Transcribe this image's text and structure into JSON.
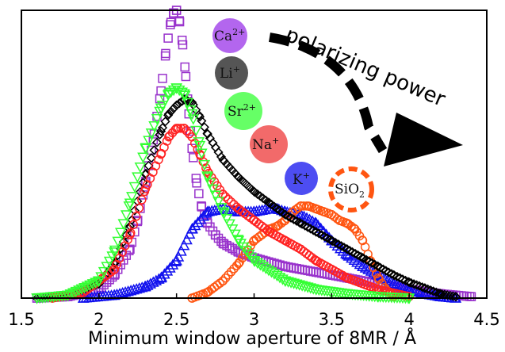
{
  "chart_data": {
    "type": "scatter",
    "title": "",
    "xlabel": "Minimum window aperture of 8MR / Å",
    "ylabel": "",
    "xlim": [
      1.5,
      4.5
    ],
    "ylim": [
      0,
      1.0
    ],
    "xticks": [
      "1.5",
      "2",
      "2.5",
      "3",
      "3.5",
      "4",
      "4.5"
    ],
    "yticks": [],
    "grid": false,
    "legend": "none",
    "series": [
      {
        "name": "Ca²⁺",
        "color": "#9933cc",
        "marker": "square",
        "x": [
          1.6,
          1.8,
          2.0,
          2.1,
          2.2,
          2.25,
          2.3,
          2.35,
          2.4,
          2.43,
          2.46,
          2.48,
          2.5,
          2.52,
          2.54,
          2.56,
          2.58,
          2.6,
          2.63,
          2.66,
          2.7,
          2.75,
          2.8,
          2.9,
          3.0,
          3.2,
          3.4,
          3.6,
          3.8,
          4.0,
          4.2,
          4.4
        ],
        "y": [
          0.0,
          0.005,
          0.03,
          0.08,
          0.17,
          0.27,
          0.4,
          0.55,
          0.72,
          0.85,
          0.95,
          0.99,
          1.0,
          0.96,
          0.88,
          0.77,
          0.64,
          0.52,
          0.4,
          0.32,
          0.26,
          0.22,
          0.19,
          0.16,
          0.14,
          0.11,
          0.09,
          0.07,
          0.05,
          0.03,
          0.015,
          0.005
        ]
      },
      {
        "name": "Li⁺",
        "color": "#000000",
        "marker": "diamond",
        "x": [
          1.6,
          1.8,
          2.0,
          2.1,
          2.2,
          2.3,
          2.4,
          2.45,
          2.5,
          2.55,
          2.6,
          2.65,
          2.7,
          2.8,
          2.9,
          3.0,
          3.1,
          3.2,
          3.3,
          3.4,
          3.5,
          3.6,
          3.7,
          3.8,
          3.9,
          4.0,
          4.1,
          4.2,
          4.3
        ],
        "y": [
          0.0,
          0.01,
          0.05,
          0.12,
          0.25,
          0.43,
          0.58,
          0.64,
          0.67,
          0.69,
          0.68,
          0.63,
          0.57,
          0.48,
          0.42,
          0.37,
          0.33,
          0.29,
          0.26,
          0.23,
          0.2,
          0.17,
          0.14,
          0.11,
          0.08,
          0.055,
          0.035,
          0.015,
          0.005
        ]
      },
      {
        "name": "Sr²⁺",
        "color": "#33ff33",
        "marker": "triangle-down",
        "x": [
          1.6,
          1.8,
          2.0,
          2.1,
          2.2,
          2.3,
          2.4,
          2.45,
          2.5,
          2.55,
          2.6,
          2.65,
          2.7,
          2.8,
          2.9,
          3.0,
          3.2,
          3.4,
          3.6,
          3.8,
          4.0
        ],
        "y": [
          0.0,
          0.01,
          0.06,
          0.16,
          0.33,
          0.52,
          0.66,
          0.71,
          0.73,
          0.71,
          0.64,
          0.53,
          0.42,
          0.3,
          0.2,
          0.13,
          0.06,
          0.03,
          0.015,
          0.005,
          0.0
        ]
      },
      {
        "name": "Na⁺",
        "color": "#ff2222",
        "marker": "circle",
        "x": [
          1.7,
          1.9,
          2.1,
          2.2,
          2.3,
          2.4,
          2.45,
          2.5,
          2.55,
          2.6,
          2.65,
          2.7,
          2.8,
          2.9,
          3.0,
          3.1,
          3.2,
          3.3,
          3.4,
          3.5,
          3.6,
          3.8,
          4.0
        ],
        "y": [
          0.0,
          0.02,
          0.1,
          0.22,
          0.38,
          0.5,
          0.56,
          0.59,
          0.59,
          0.56,
          0.5,
          0.44,
          0.36,
          0.31,
          0.27,
          0.23,
          0.2,
          0.17,
          0.13,
          0.1,
          0.07,
          0.03,
          0.005
        ]
      },
      {
        "name": "K⁺",
        "color": "#1111ee",
        "marker": "triangle-up",
        "x": [
          1.9,
          2.1,
          2.3,
          2.4,
          2.5,
          2.6,
          2.7,
          2.8,
          2.9,
          3.0,
          3.1,
          3.15,
          3.2,
          3.3,
          3.4,
          3.5,
          3.6,
          3.7,
          3.8,
          3.9,
          4.0,
          4.1,
          4.2,
          4.3
        ],
        "y": [
          0.0,
          0.01,
          0.04,
          0.07,
          0.13,
          0.24,
          0.3,
          0.31,
          0.3,
          0.3,
          0.31,
          0.31,
          0.3,
          0.29,
          0.26,
          0.2,
          0.15,
          0.11,
          0.08,
          0.05,
          0.03,
          0.015,
          0.005,
          0.0
        ]
      },
      {
        "name": "SiO₂",
        "color": "#ff5511",
        "marker": "circle",
        "x": [
          2.6,
          2.7,
          2.8,
          2.9,
          3.0,
          3.05,
          3.1,
          3.15,
          3.2,
          3.25,
          3.3,
          3.35,
          3.4,
          3.45,
          3.5,
          3.55,
          3.6,
          3.65,
          3.7,
          3.75,
          3.8,
          3.85,
          3.9
        ],
        "y": [
          0.0,
          0.02,
          0.06,
          0.12,
          0.2,
          0.22,
          0.24,
          0.25,
          0.27,
          0.3,
          0.32,
          0.32,
          0.31,
          0.3,
          0.29,
          0.27,
          0.26,
          0.24,
          0.2,
          0.13,
          0.07,
          0.03,
          0.005
        ]
      }
    ],
    "annotations": {
      "arrow_label": "polarizing power",
      "ions": [
        {
          "base": "Ca",
          "sup": "2+",
          "color": "#b366ee"
        },
        {
          "base": "Li",
          "sup": "+",
          "color": "#555555"
        },
        {
          "base": "Sr",
          "sup": "2+",
          "color": "#66ff66"
        },
        {
          "base": "Na",
          "sup": "+",
          "color": "#f26a6a"
        },
        {
          "base": "K",
          "sup": "+",
          "color": "#4d4df2"
        }
      ],
      "silica": {
        "base": "SiO",
        "sub": "2",
        "color": "#ff5511"
      }
    }
  }
}
